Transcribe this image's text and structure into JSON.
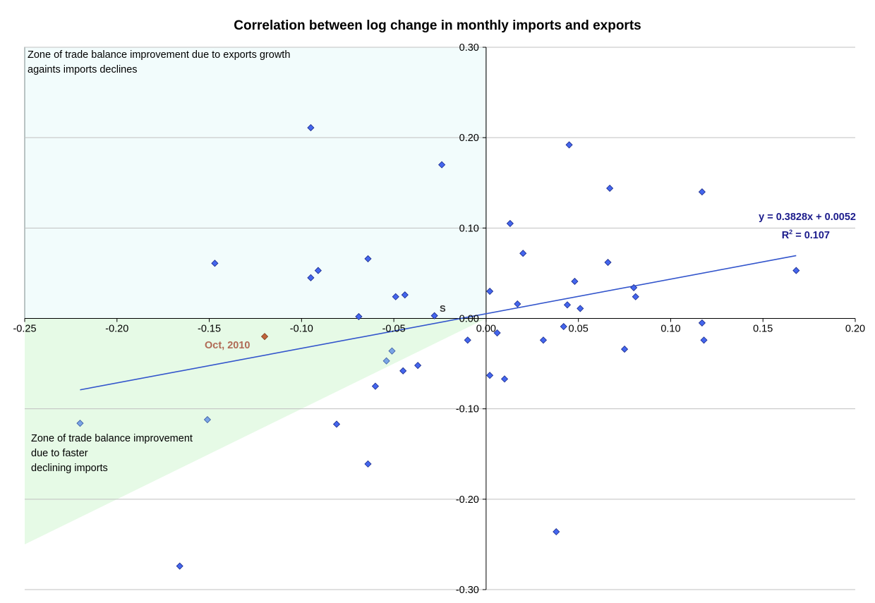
{
  "chart_data": {
    "type": "scatter",
    "title": "Correlation between log change in monthly imports and exports",
    "xlabel": "",
    "ylabel": "",
    "xlim": [
      -0.25,
      0.2
    ],
    "ylim": [
      -0.3,
      0.3
    ],
    "x_ticks": [
      "-0.25",
      "-0.20",
      "-0.15",
      "-0.10",
      "-0.05",
      "0.00",
      "0.05",
      "0.10",
      "0.15",
      "0.20"
    ],
    "y_ticks": [
      "0.30",
      "0.20",
      "0.10",
      "0.00",
      "-0.10",
      "-0.20",
      "-0.30"
    ],
    "grid": "horizontal",
    "colors": {
      "points": "#4466ee",
      "points_light": "#7aa5e6",
      "highlight": "#c0643c",
      "trendline": "#3355cc",
      "equation": "#1c1c8c",
      "zone_top": "#f2fcfc",
      "zone_bottom": "#e6fae6"
    },
    "points": [
      {
        "x": -0.095,
        "y": 0.211
      },
      {
        "x": -0.024,
        "y": 0.17
      },
      {
        "x": 0.045,
        "y": 0.192
      },
      {
        "x": 0.067,
        "y": 0.144
      },
      {
        "x": 0.117,
        "y": 0.14
      },
      {
        "x": 0.013,
        "y": 0.105
      },
      {
        "x": 0.02,
        "y": 0.072
      },
      {
        "x": -0.147,
        "y": 0.061
      },
      {
        "x": -0.064,
        "y": 0.066
      },
      {
        "x": -0.091,
        "y": 0.053
      },
      {
        "x": -0.095,
        "y": 0.045
      },
      {
        "x": 0.066,
        "y": 0.062
      },
      {
        "x": 0.168,
        "y": 0.053
      },
      {
        "x": 0.048,
        "y": 0.041
      },
      {
        "x": 0.08,
        "y": 0.034
      },
      {
        "x": 0.002,
        "y": 0.03
      },
      {
        "x": -0.044,
        "y": 0.026
      },
      {
        "x": -0.049,
        "y": 0.024
      },
      {
        "x": 0.081,
        "y": 0.024
      },
      {
        "x": 0.017,
        "y": 0.016
      },
      {
        "x": 0.044,
        "y": 0.015
      },
      {
        "x": 0.051,
        "y": 0.011
      },
      {
        "x": -0.069,
        "y": 0.002
      },
      {
        "x": -0.028,
        "y": 0.003
      },
      {
        "x": 0.006,
        "y": -0.016
      },
      {
        "x": 0.042,
        "y": -0.009
      },
      {
        "x": 0.117,
        "y": -0.005
      },
      {
        "x": -0.01,
        "y": -0.024
      },
      {
        "x": 0.031,
        "y": -0.024
      },
      {
        "x": 0.118,
        "y": -0.024
      },
      {
        "x": 0.075,
        "y": -0.034
      },
      {
        "x": 0.002,
        "y": -0.063
      },
      {
        "x": 0.01,
        "y": -0.067
      },
      {
        "x": -0.037,
        "y": -0.052
      },
      {
        "x": -0.045,
        "y": -0.058
      },
      {
        "x": -0.06,
        "y": -0.075
      },
      {
        "x": -0.081,
        "y": -0.117
      },
      {
        "x": -0.064,
        "y": -0.161
      },
      {
        "x": 0.038,
        "y": -0.236
      },
      {
        "x": -0.166,
        "y": -0.274
      }
    ],
    "points_light": [
      {
        "x": -0.051,
        "y": -0.036
      },
      {
        "x": -0.054,
        "y": -0.047
      },
      {
        "x": -0.151,
        "y": -0.112
      },
      {
        "x": -0.22,
        "y": -0.116
      }
    ],
    "highlight_point": {
      "x": -0.12,
      "y": -0.02,
      "label": "Oct, 2010"
    },
    "s_point": {
      "x": -0.025,
      "y": 0.002,
      "label": "S"
    },
    "trendline": {
      "slope": 0.3828,
      "intercept": 0.0052,
      "x_range": [
        -0.22,
        0.168
      ],
      "equation": "y = 0.3828x + 0.0052",
      "r2_label": "R",
      "r2_value": " = 0.107",
      "r2_sup": "2"
    },
    "zones": {
      "top_label": "Zone of trade balance improvement due to exports growth\nagaints imports declines",
      "bottom_label": "Zone of trade balance improvement\ndue to faster\ndeclining imports"
    }
  }
}
